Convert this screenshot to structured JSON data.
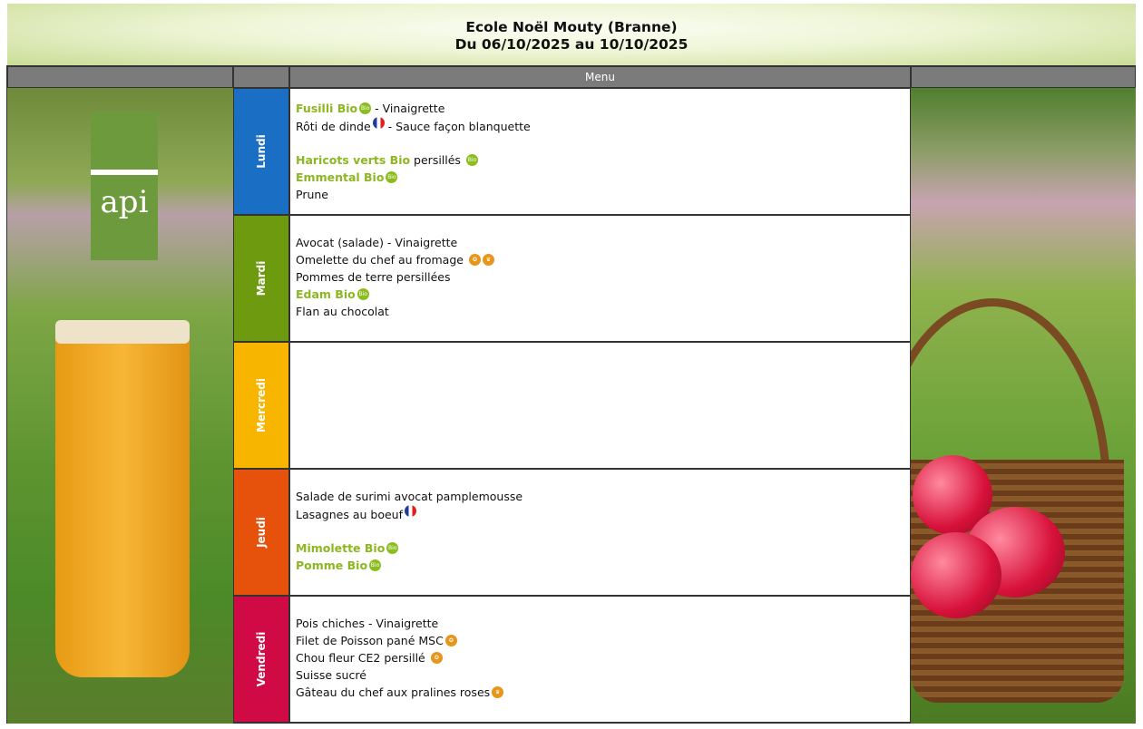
{
  "header": {
    "school": "Ecole Noël Mouty (Branne)",
    "dates": "Du 06/10/2025 au 10/10/2025"
  },
  "table": {
    "menu_header": "Menu"
  },
  "logo": {
    "text": "api"
  },
  "colors": {
    "lundi": "#1a6fc4",
    "mardi": "#6e9a10",
    "mercredi": "#f7b500",
    "jeudi": "#e6520c",
    "vendredi": "#cf0a45",
    "bio_green": "#8cb720",
    "header_gray": "#7b7b7b"
  },
  "days": [
    {
      "name": "Lundi",
      "lines": [
        [
          {
            "type": "bold",
            "t": "Fusilli Bio"
          },
          {
            "type": "icon",
            "icon": "bio-icon",
            "t": "Bio"
          },
          {
            "type": "text",
            "t": " - Vinaigrette"
          }
        ],
        [
          {
            "type": "text",
            "t": "Rôti de dinde"
          },
          {
            "type": "icon",
            "icon": "france-flag-icon"
          },
          {
            "type": "text",
            "t": " - Sauce façon blanquette"
          }
        ],
        [],
        [
          {
            "type": "bold",
            "t": "Haricots verts Bio"
          },
          {
            "type": "text",
            "t": " persillés "
          },
          {
            "type": "icon",
            "icon": "bio-icon",
            "t": "Bio"
          }
        ],
        [
          {
            "type": "bold",
            "t": "Emmental Bio"
          },
          {
            "type": "icon",
            "icon": "bio-icon",
            "t": "Bio"
          }
        ],
        [
          {
            "type": "text",
            "t": "Prune"
          }
        ]
      ]
    },
    {
      "name": "Mardi",
      "lines": [
        [],
        [
          {
            "type": "text",
            "t": "Avocat (salade) - Vinaigrette"
          }
        ],
        [
          {
            "type": "text",
            "t": "Omelette du chef au fromage "
          },
          {
            "type": "icon",
            "icon": "quality-label-icon"
          },
          {
            "type": "icon",
            "icon": "chef-hat-icon"
          }
        ],
        [
          {
            "type": "text",
            "t": "Pommes de terre persillées"
          }
        ],
        [
          {
            "type": "bold",
            "t": "Edam Bio"
          },
          {
            "type": "icon",
            "icon": "bio-icon",
            "t": "Bio"
          }
        ],
        [
          {
            "type": "text",
            "t": "Flan au chocolat"
          }
        ]
      ]
    },
    {
      "name": "Mercredi",
      "lines": []
    },
    {
      "name": "Jeudi",
      "lines": [
        [],
        [
          {
            "type": "text",
            "t": "Salade de surimi avocat pamplemousse"
          }
        ],
        [
          {
            "type": "text",
            "t": "Lasagnes au boeuf"
          },
          {
            "type": "icon",
            "icon": "france-flag-icon"
          }
        ],
        [],
        [
          {
            "type": "bold",
            "t": "Mimolette Bio"
          },
          {
            "type": "icon",
            "icon": "bio-icon",
            "t": "Bio"
          }
        ],
        [
          {
            "type": "bold",
            "t": "Pomme Bio"
          },
          {
            "type": "icon",
            "icon": "bio-icon",
            "t": "Bio"
          }
        ]
      ]
    },
    {
      "name": "Vendredi",
      "lines": [
        [],
        [
          {
            "type": "text",
            "t": "Pois chiches - Vinaigrette"
          }
        ],
        [
          {
            "type": "text",
            "t": "Filet de Poisson pané MSC"
          },
          {
            "type": "icon",
            "icon": "quality-label-icon"
          }
        ],
        [
          {
            "type": "text",
            "t": "Chou fleur CE2 persillé "
          },
          {
            "type": "icon",
            "icon": "quality-label-icon"
          }
        ],
        [
          {
            "type": "text",
            "t": "Suisse sucré"
          }
        ],
        [
          {
            "type": "text",
            "t": "Gâteau du chef aux pralines roses"
          },
          {
            "type": "icon",
            "icon": "chef-hat-icon"
          }
        ]
      ]
    }
  ]
}
